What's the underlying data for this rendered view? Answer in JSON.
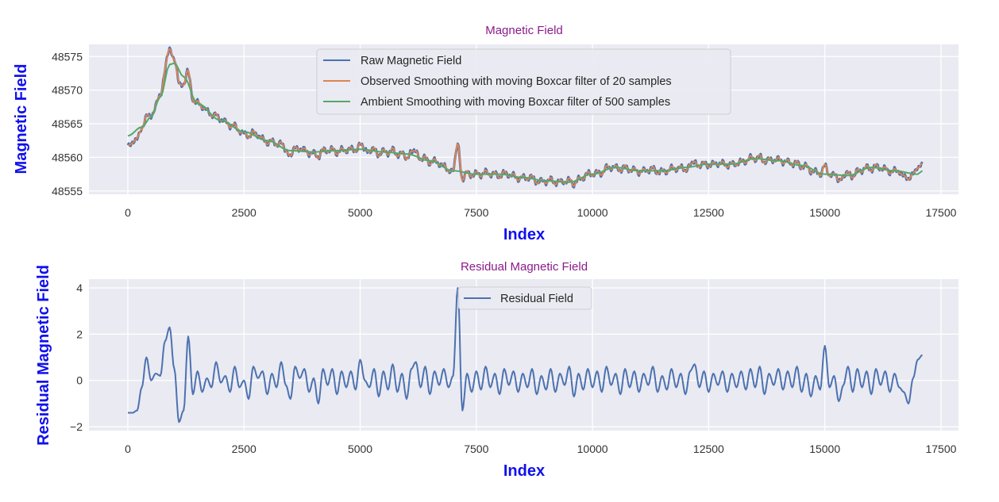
{
  "colors": {
    "raw": "#4c72b0",
    "observed": "#dd8452",
    "ambient": "#55a868",
    "title": "#8b1a8b",
    "axis_label": "#1010ee",
    "panel": "#eaeaf2"
  },
  "chart_data": [
    {
      "type": "line",
      "title": "Magnetic Field",
      "xlabel": "Index",
      "ylabel": "Magnetic Field",
      "xlim": [
        -837,
        17877
      ],
      "ylim": [
        48554.5,
        48576.8
      ],
      "xticks": [
        0,
        2500,
        5000,
        7500,
        10000,
        12500,
        15000,
        17500
      ],
      "yticks": [
        48555,
        48560,
        48565,
        48570,
        48575
      ],
      "grid": true,
      "legend_position": "top-center",
      "series": [
        {
          "name": "Raw Magnetic Field",
          "key": "raw"
        },
        {
          "name": "Observed Smoothing with moving Boxcar filter of 20 samples",
          "key": "observed"
        },
        {
          "name": "Ambient Smoothing with moving Boxcar filter of 500 samples",
          "key": "ambient"
        }
      ],
      "ambient_keypoints": [
        [
          0,
          48563.2
        ],
        [
          300,
          48564.5
        ],
        [
          500,
          48566
        ],
        [
          700,
          48569
        ],
        [
          900,
          48573.8
        ],
        [
          1000,
          48574
        ],
        [
          1200,
          48572
        ],
        [
          1500,
          48568
        ],
        [
          2000,
          48565.5
        ],
        [
          2500,
          48563.8
        ],
        [
          3000,
          48562.5
        ],
        [
          3500,
          48561
        ],
        [
          4000,
          48560.8
        ],
        [
          4500,
          48561
        ],
        [
          5000,
          48561.2
        ],
        [
          5500,
          48560.8
        ],
        [
          6000,
          48560.5
        ],
        [
          6500,
          48559.5
        ],
        [
          7000,
          48558
        ],
        [
          7500,
          48557.5
        ],
        [
          8000,
          48557.5
        ],
        [
          8500,
          48557
        ],
        [
          9000,
          48556.5
        ],
        [
          9500,
          48556.3
        ],
        [
          10000,
          48557.5
        ],
        [
          10500,
          48558.5
        ],
        [
          11000,
          48558
        ],
        [
          11500,
          48558
        ],
        [
          12000,
          48558.5
        ],
        [
          12500,
          48559
        ],
        [
          13000,
          48559
        ],
        [
          13500,
          48559.8
        ],
        [
          14000,
          48559.5
        ],
        [
          14500,
          48558.8
        ],
        [
          15000,
          48557.5
        ],
        [
          15500,
          48557.3
        ],
        [
          16000,
          48558.5
        ],
        [
          16500,
          48558
        ],
        [
          17000,
          48557.5
        ],
        [
          17100,
          48558
        ]
      ]
    },
    {
      "type": "line",
      "title": "Residual Magnetic Field",
      "xlabel": "Index",
      "ylabel": "Residual Magnetic Field",
      "xlim": [
        -837,
        17877
      ],
      "ylim": [
        -2.17,
        4.38
      ],
      "xticks": [
        0,
        2500,
        5000,
        7500,
        10000,
        12500,
        15000,
        17500
      ],
      "yticks": [
        -2,
        0,
        2,
        4
      ],
      "grid": true,
      "legend_position": "top-center",
      "series": [
        {
          "name": "Residual Field",
          "key": "raw"
        }
      ],
      "x_step": 100,
      "residual": [
        -1.4,
        -1.4,
        -1.3,
        -0.3,
        1.0,
        0.0,
        0.3,
        0.2,
        1.7,
        2.3,
        0.5,
        -1.8,
        -1.3,
        1.9,
        -0.6,
        0.4,
        -0.5,
        0.1,
        -0.3,
        0.8,
        -0.1,
        0.2,
        -0.5,
        0.6,
        -0.3,
        0.0,
        -0.8,
        0.6,
        0.1,
        0.4,
        -0.6,
        0.3,
        -0.3,
        0.8,
        -0.2,
        -0.8,
        0.6,
        0.1,
        0.5,
        -0.5,
        0.1,
        -1.0,
        0.5,
        -0.2,
        0.5,
        -0.6,
        0.4,
        -0.3,
        0.4,
        -0.4,
        0.9,
        0.0,
        -0.3,
        0.5,
        -0.7,
        0.4,
        -0.4,
        0.7,
        -0.5,
        0.3,
        -0.8,
        0.5,
        0.8,
        -0.3,
        0.6,
        -0.6,
        0.4,
        -0.2,
        0.5,
        -0.3,
        0.2,
        4.0,
        -1.3,
        0.3,
        -0.5,
        0.4,
        -0.4,
        0.6,
        -0.3,
        0.3,
        -0.6,
        0.5,
        -0.2,
        0.4,
        -0.5,
        0.3,
        -0.3,
        0.5,
        -0.6,
        0.2,
        -0.4,
        0.5,
        -0.5,
        0.3,
        -0.2,
        0.6,
        -0.7,
        0.3,
        -0.4,
        0.5,
        -0.3,
        0.4,
        -0.5,
        0.6,
        -0.2,
        0.3,
        -0.6,
        0.5,
        -0.3,
        0.4,
        -0.5,
        0.3,
        -0.2,
        0.6,
        -0.5,
        0.2,
        -0.4,
        0.5,
        -0.3,
        0.3,
        -0.6,
        0.4,
        0.7,
        -0.3,
        0.4,
        -0.5,
        0.3,
        -0.2,
        0.4,
        -0.5,
        0.3,
        -0.3,
        0.4,
        -0.4,
        0.5,
        -0.3,
        0.6,
        -0.6,
        0.3,
        -0.2,
        0.5,
        -0.4,
        0.4,
        -0.3,
        0.6,
        -0.5,
        0.3,
        -0.7,
        0.2,
        -0.4,
        1.5,
        -0.3,
        0.2,
        -0.9,
        -0.2,
        0.6,
        -0.5,
        0.5,
        -0.3,
        0.4,
        -0.6,
        0.5,
        -0.2,
        0.4,
        -0.5,
        0.3,
        -0.3,
        -0.5,
        -1.0,
        0.1,
        0.9,
        1.1
      ]
    }
  ]
}
